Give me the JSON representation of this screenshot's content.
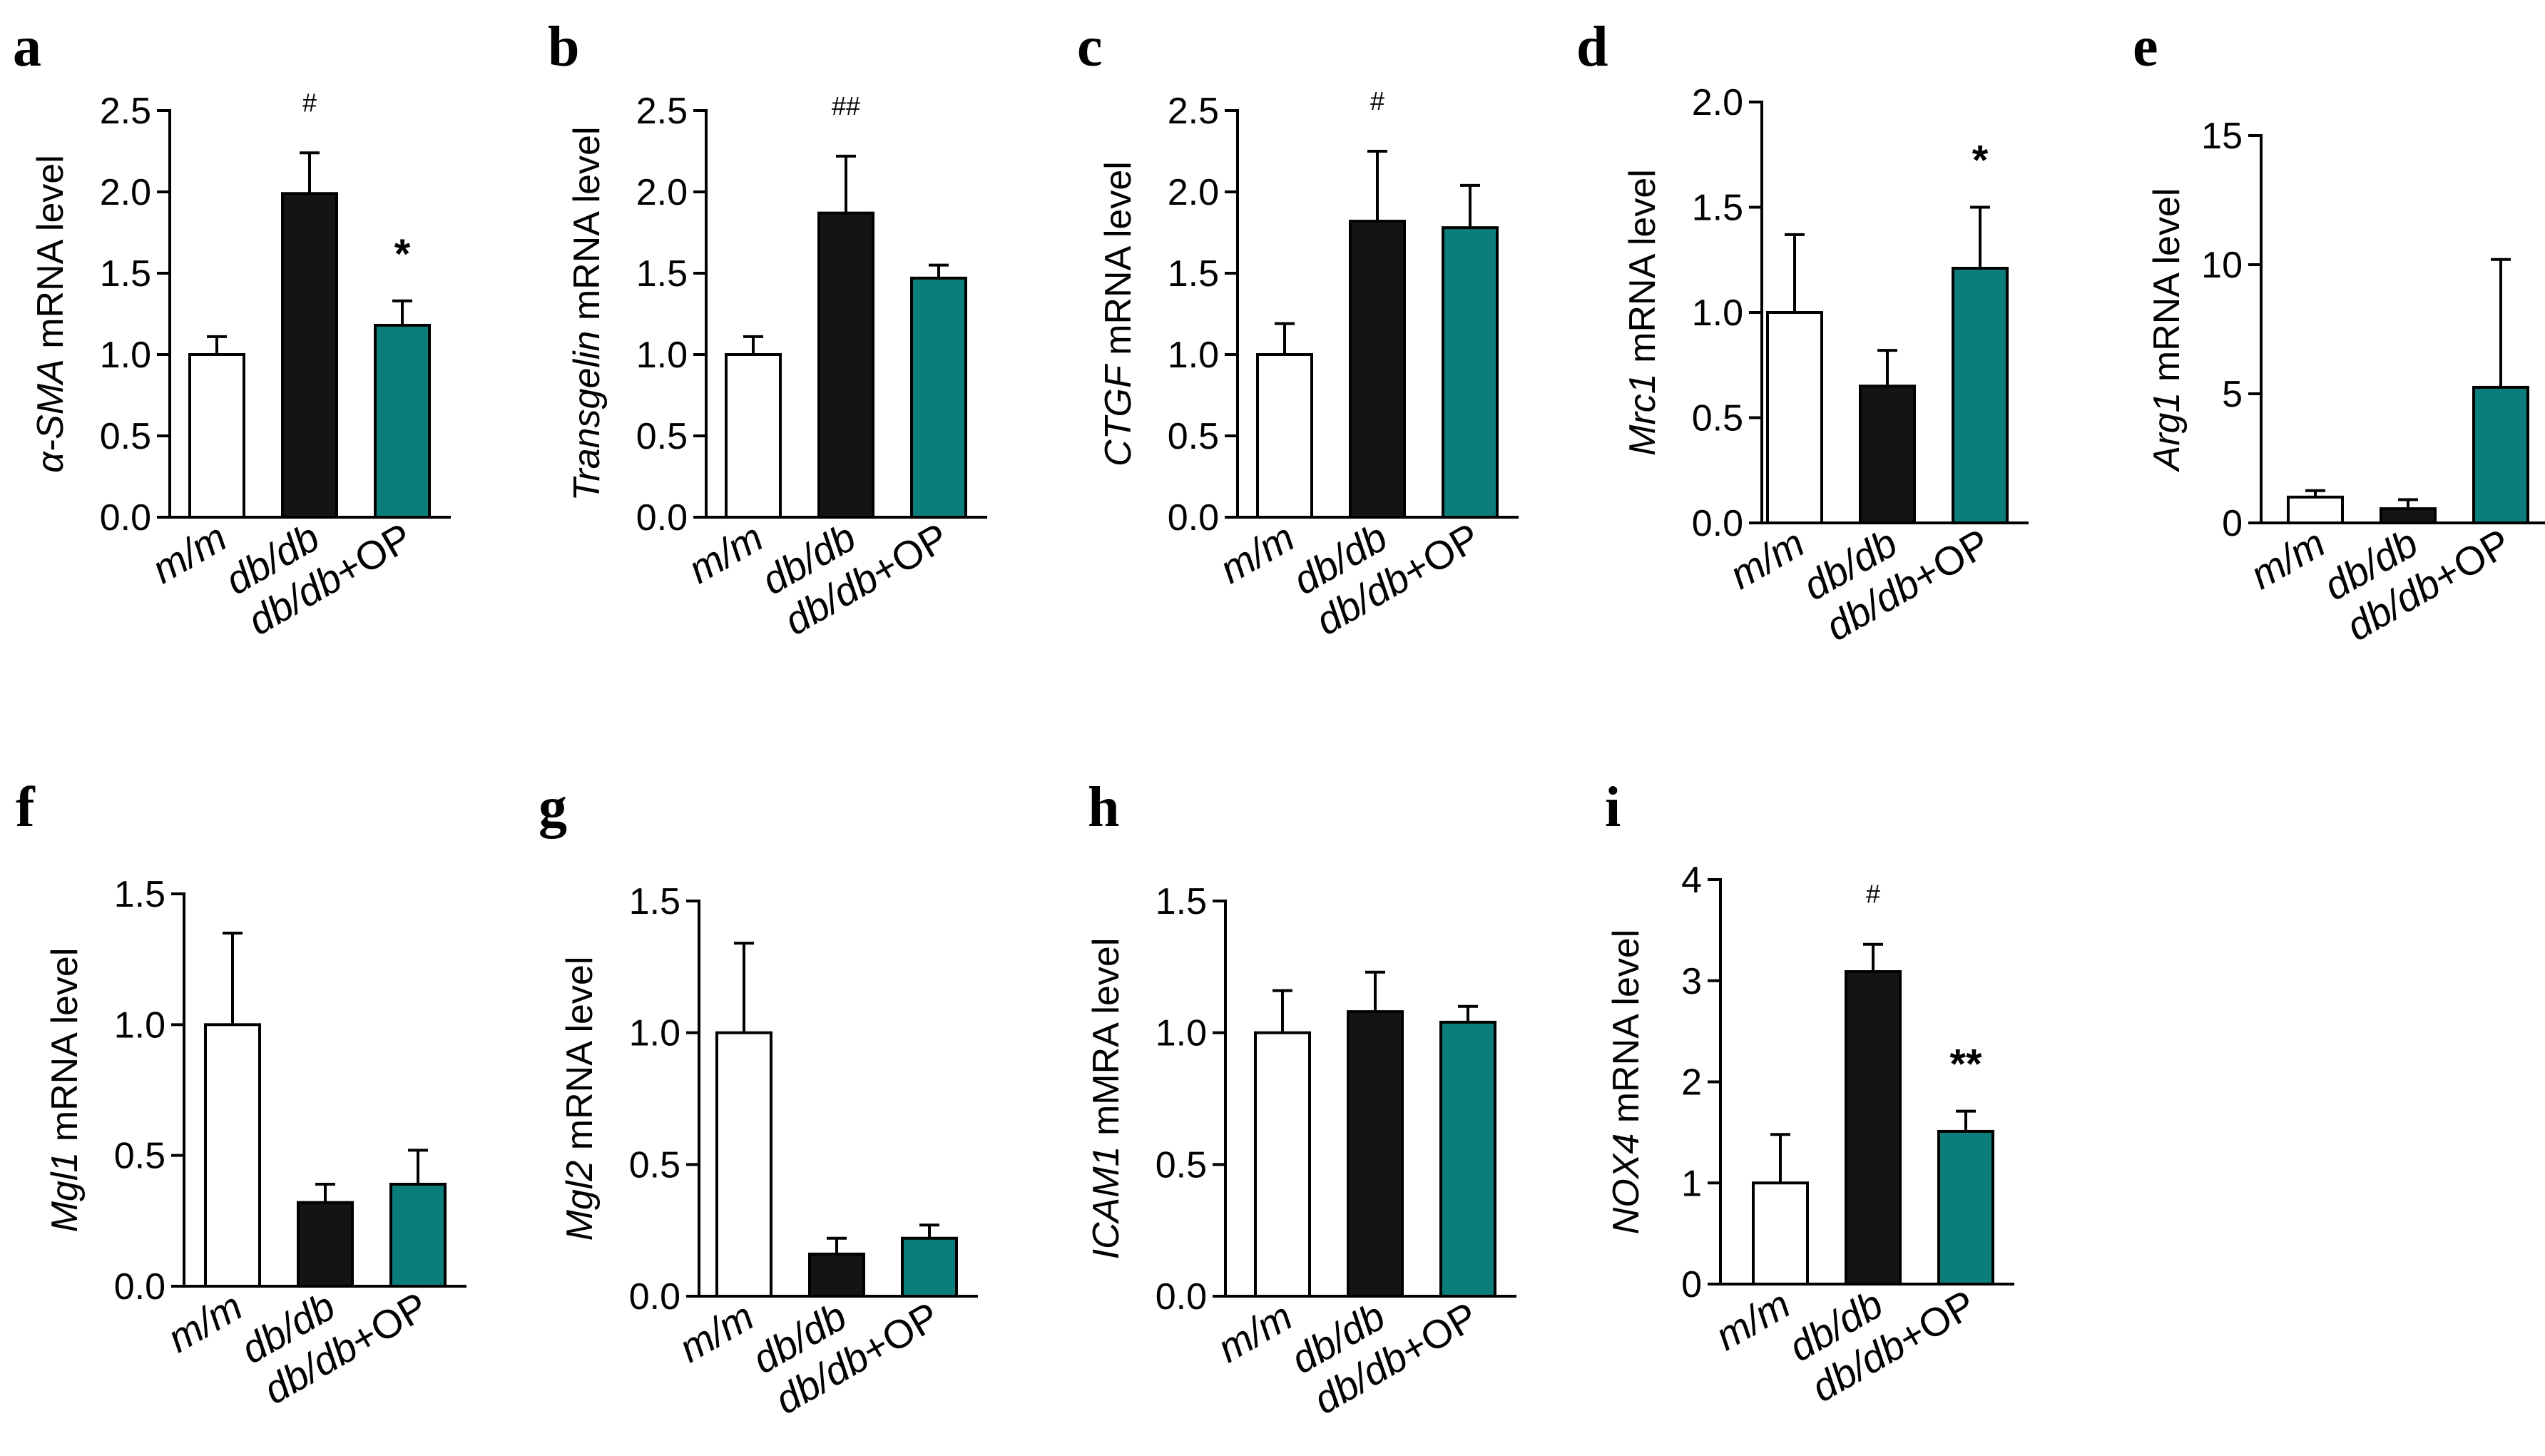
{
  "colors": {
    "m/m": "#ffffff",
    "db/db": "#141414",
    "db/db+OP": "#0b7e7b",
    "axis": "#000000"
  },
  "chart_data": [
    {
      "type": "bar",
      "panel": "a",
      "ylabel": {
        "gene": "α-SMA",
        "rest": " mRNA level"
      },
      "categories": [
        "m/m",
        "db/db",
        "db/db+OP"
      ],
      "values": [
        1.0,
        1.99,
        1.18
      ],
      "errors": [
        0.11,
        0.25,
        0.15
      ],
      "significance": [
        "",
        "#",
        "*"
      ],
      "ylim": [
        0,
        2.5
      ],
      "yticks": [
        "0.0",
        "0.5",
        "1.0",
        "1.5",
        "2.0",
        "2.5"
      ]
    },
    {
      "type": "bar",
      "panel": "b",
      "ylabel": {
        "gene": "Transgelin",
        "rest": "  mRNA  level"
      },
      "categories": [
        "m/m",
        "db/db",
        "db/db+OP"
      ],
      "values": [
        1.0,
        1.87,
        1.47
      ],
      "errors": [
        0.11,
        0.35,
        0.08
      ],
      "significance": [
        "",
        "##",
        ""
      ],
      "ylim": [
        0,
        2.5
      ],
      "yticks": [
        "0.0",
        "0.5",
        "1.0",
        "1.5",
        "2.0",
        "2.5"
      ]
    },
    {
      "type": "bar",
      "panel": "c",
      "ylabel": {
        "gene": "CTGF",
        "rest": " mRNA level"
      },
      "categories": [
        "m/m",
        "db/db",
        "db/db+OP"
      ],
      "values": [
        1.0,
        1.82,
        1.78
      ],
      "errors": [
        0.19,
        0.43,
        0.26
      ],
      "significance": [
        "",
        "#",
        ""
      ],
      "ylim": [
        0,
        2.5
      ],
      "yticks": [
        "0.0",
        "0.5",
        "1.0",
        "1.5",
        "2.0",
        "2.5"
      ]
    },
    {
      "type": "bar",
      "panel": "d",
      "ylabel": {
        "gene": "Mrc1",
        "rest": " mRNA level"
      },
      "categories": [
        "m/m",
        "db/db",
        "db/db+OP"
      ],
      "values": [
        1.0,
        0.65,
        1.21
      ],
      "errors": [
        0.37,
        0.17,
        0.29
      ],
      "significance": [
        "",
        "",
        "*"
      ],
      "ylim": [
        0,
        2.0
      ],
      "yticks": [
        "0.0",
        "0.5",
        "1.0",
        "1.5",
        "2.0"
      ]
    },
    {
      "type": "bar",
      "panel": "e",
      "ylabel": {
        "gene": "Arg1",
        "rest": " mRNA level"
      },
      "categories": [
        "m/m",
        "db/db",
        "db/db+OP"
      ],
      "values": [
        1.0,
        0.55,
        5.25
      ],
      "errors": [
        0.25,
        0.35,
        4.95
      ],
      "significance": [
        "",
        "",
        ""
      ],
      "ylim": [
        0,
        15
      ],
      "yticks": [
        "0",
        "5",
        "10",
        "15"
      ]
    },
    {
      "type": "bar",
      "panel": "f",
      "ylabel": {
        "gene": "Mgl1",
        "rest": " mRNA level"
      },
      "categories": [
        "m/m",
        "db/db",
        "db/db+OP"
      ],
      "values": [
        1.0,
        0.32,
        0.39
      ],
      "errors": [
        0.35,
        0.07,
        0.13
      ],
      "significance": [
        "",
        "",
        ""
      ],
      "ylim": [
        0,
        1.5
      ],
      "yticks": [
        "0.0",
        "0.5",
        "1.0",
        "1.5"
      ]
    },
    {
      "type": "bar",
      "panel": "g",
      "ylabel": {
        "gene": "Mgl2",
        "rest": " mRNA level"
      },
      "categories": [
        "m/m",
        "db/db",
        "db/db+OP"
      ],
      "values": [
        1.0,
        0.16,
        0.22
      ],
      "errors": [
        0.34,
        0.06,
        0.05
      ],
      "significance": [
        "",
        "",
        ""
      ],
      "ylim": [
        0,
        1.5
      ],
      "yticks": [
        "0.0",
        "0.5",
        "1.0",
        "1.5"
      ]
    },
    {
      "type": "bar",
      "panel": "h",
      "ylabel": {
        "gene": "ICAM1",
        "rest": " mMRA level"
      },
      "categories": [
        "m/m",
        "db/db",
        "db/db+OP"
      ],
      "values": [
        1.0,
        1.08,
        1.04
      ],
      "errors": [
        0.16,
        0.15,
        0.06
      ],
      "significance": [
        "",
        "",
        ""
      ],
      "ylim": [
        0,
        1.5
      ],
      "yticks": [
        "0.0",
        "0.5",
        "1.0",
        "1.5"
      ]
    },
    {
      "type": "bar",
      "panel": "i",
      "ylabel": {
        "gene": "NOX4",
        "rest": " mRNA level"
      },
      "categories": [
        "m/m",
        "db/db",
        "db/db+OP"
      ],
      "values": [
        1.0,
        3.09,
        1.51
      ],
      "errors": [
        0.48,
        0.27,
        0.2
      ],
      "significance": [
        "",
        "#",
        "**"
      ],
      "ylim": [
        0,
        4
      ],
      "yticks": [
        "0",
        "1",
        "2",
        "3",
        "4"
      ]
    }
  ]
}
